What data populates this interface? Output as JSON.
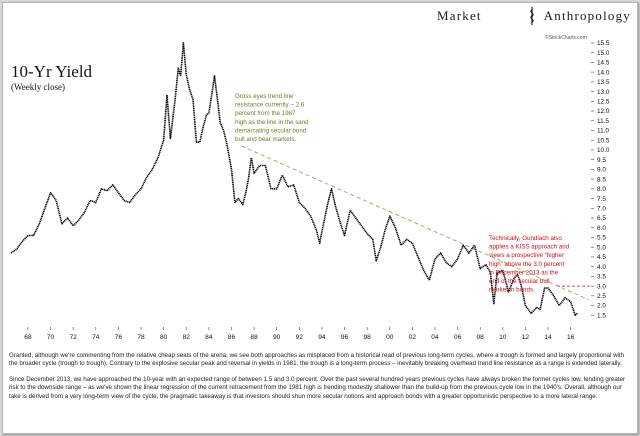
{
  "brand": {
    "left": "Market",
    "right": "Anthropology"
  },
  "chart_data": {
    "type": "line",
    "title": "10-Yr Yield",
    "subtitle": "(Weekly close)",
    "source": "©StockCharts.com",
    "x_tick_labels": [
      "68",
      "70",
      "72",
      "74",
      "76",
      "78",
      "80",
      "82",
      "84",
      "86",
      "88",
      "90",
      "92",
      "94",
      "96",
      "98",
      "00",
      "02",
      "04",
      "06",
      "08",
      "10",
      "12",
      "14",
      "16"
    ],
    "x_tick_years": [
      1968,
      1970,
      1972,
      1974,
      1976,
      1978,
      1980,
      1982,
      1984,
      1986,
      1988,
      1990,
      1992,
      1994,
      1996,
      1998,
      2000,
      2002,
      2004,
      2006,
      2008,
      2010,
      2012,
      2014,
      2016
    ],
    "xlim": [
      1966.5,
      2017.8
    ],
    "ylim": [
      1.0,
      15.6
    ],
    "y_ticks": [
      1.5,
      2.0,
      2.5,
      3.0,
      3.5,
      4.0,
      4.5,
      5.0,
      5.5,
      6.0,
      6.5,
      7.0,
      7.5,
      8.0,
      8.5,
      9.0,
      9.5,
      10.0,
      10.5,
      11.0,
      11.5,
      12.0,
      12.5,
      13.0,
      13.5,
      14.0,
      14.5,
      15.0,
      15.5
    ],
    "y_tick_labels": [
      "1.5",
      "2.0",
      "2.5",
      "3.0",
      "3.5",
      "4.0",
      "4.5",
      "5.0",
      "5.5",
      "6.0",
      "6.5",
      "7.0",
      "7.5",
      "8.0",
      "8.5",
      "9.0",
      "9.5",
      "10.0",
      "10.5",
      "11.0",
      "11.5",
      "12.0",
      "12.5",
      "13.0",
      "13.5",
      "14.0",
      "14.5",
      "15.0",
      "15.5"
    ],
    "series": [
      {
        "x": [
          1966.5,
          1967.0,
          1967.5,
          1968.0,
          1968.5,
          1969.0,
          1969.5,
          1970.0,
          1970.5,
          1971.0,
          1971.5,
          1972.0,
          1972.5,
          1973.0,
          1973.5,
          1974.0,
          1974.5,
          1975.0,
          1975.5,
          1976.0,
          1976.5,
          1977.0,
          1977.5,
          1978.0,
          1978.5,
          1979.0,
          1979.5,
          1980.0,
          1980.3,
          1980.6,
          1981.0,
          1981.3,
          1981.5,
          1981.75,
          1982.0,
          1982.3,
          1982.6,
          1982.9,
          1983.2,
          1983.5,
          1983.8,
          1984.0,
          1984.3,
          1984.5,
          1984.8,
          1985.0,
          1985.3,
          1985.6,
          1986.0,
          1986.3,
          1986.6,
          1987.0,
          1987.3,
          1987.5,
          1987.75,
          1988.0,
          1988.5,
          1989.0,
          1989.5,
          1990.0,
          1990.5,
          1991.0,
          1991.5,
          1992.0,
          1992.5,
          1993.0,
          1993.5,
          1993.8,
          1994.0,
          1994.5,
          1994.85,
          1995.2,
          1995.6,
          1996.0,
          1996.5,
          1997.0,
          1997.5,
          1998.0,
          1998.5,
          1998.8,
          1999.2,
          1999.6,
          2000.0,
          2000.5,
          2001.0,
          2001.5,
          2002.0,
          2002.5,
          2003.0,
          2003.5,
          2004.0,
          2004.5,
          2005.0,
          2005.5,
          2006.0,
          2006.5,
          2007.0,
          2007.5,
          2008.0,
          2008.5,
          2008.9,
          2009.2,
          2009.5,
          2010.0,
          2010.5,
          2011.0,
          2011.3,
          2011.6,
          2012.0,
          2012.5,
          2013.0,
          2013.3,
          2013.7,
          2014.0,
          2014.5,
          2015.0,
          2015.5,
          2016.0,
          2016.4,
          2016.6
        ],
        "y": [
          4.7,
          4.9,
          5.3,
          5.6,
          5.6,
          6.2,
          7.0,
          7.8,
          7.4,
          6.2,
          6.5,
          6.1,
          6.4,
          6.8,
          7.4,
          7.3,
          8.0,
          7.9,
          8.2,
          7.8,
          7.4,
          7.3,
          7.7,
          8.0,
          8.6,
          9.0,
          9.6,
          10.5,
          12.8,
          10.6,
          12.5,
          14.2,
          13.8,
          15.5,
          13.9,
          13.1,
          12.6,
          10.4,
          10.4,
          11.2,
          11.8,
          11.9,
          13.0,
          13.8,
          12.4,
          11.4,
          11.0,
          10.3,
          9.0,
          7.3,
          7.5,
          7.2,
          7.9,
          8.5,
          9.6,
          8.8,
          9.2,
          9.2,
          8.0,
          8.0,
          8.7,
          8.1,
          8.2,
          7.3,
          7.0,
          6.6,
          5.9,
          5.2,
          5.8,
          7.2,
          8.0,
          7.1,
          6.3,
          5.6,
          6.9,
          6.5,
          6.1,
          5.7,
          5.4,
          4.3,
          5.0,
          5.9,
          6.6,
          6.0,
          5.1,
          5.4,
          5.2,
          4.5,
          3.8,
          3.3,
          4.4,
          4.7,
          4.2,
          4.0,
          4.4,
          5.1,
          4.7,
          5.1,
          3.9,
          4.1,
          3.7,
          2.1,
          3.7,
          3.8,
          2.7,
          3.4,
          3.6,
          3.1,
          2.0,
          1.6,
          1.9,
          1.8,
          2.9,
          2.9,
          2.5,
          2.0,
          2.4,
          2.2,
          1.5,
          1.6
        ]
      }
    ],
    "trendline": {
      "from": [
        1986.9,
        10.2
      ],
      "to": [
        2017.6,
        2.3
      ],
      "color": "#9aa368"
    },
    "resistance": {
      "y": 3.0,
      "from_year": 2014.8,
      "color": "#c8101e"
    },
    "annotations": [
      {
        "lines": [
          "Gross eyes trend line",
          "resistance currently ~ 2.6",
          "percent from the 1987",
          "high as the line in the sand",
          "demarcating secular bond",
          "bull and bear markets."
        ],
        "color": "#6e7d2a"
      },
      {
        "lines": [
          "Technically, Gundlach also",
          "applies a KISS approach and",
          "views a prospective “higher",
          "high” above the 3.0 percent",
          "in December 2013 as the",
          "end of the secular bull",
          "market in bonds."
        ],
        "color": "#c8101e"
      }
    ]
  },
  "caption": {
    "p1": "Granted, although we're commenting from the relative cheap seats of the arena, we see both approaches as misplaced from a historical read of previous long-term cycles, where a trough is formed and largely proportional with the broader cycle (trough to trough). Contrary to the explosive secular peak and reversal in yields in 1981, the trough is a long-term process – inevitably breaking overhead trend line resistance as a range is extended laterally.",
    "p2": "Since December 2013, we have approached the 10-year with an expected range of between 1.5 and 3.0 percent. Over the past several hundred years previous cycles have always broken the former cycles low, lending greater risk to the downside range – as we've shown the linear regression of the current retracement from the 1981 high is trending modestly shallower than the build-up from the previous cycle low in the 1940's.  Overall, although our take is derived from a very long-term view of the cycle, the pragmatic takeaway is that investors should shun more secular notions and approach bonds with a greater opportunistic perspective to a more lateral range."
  }
}
